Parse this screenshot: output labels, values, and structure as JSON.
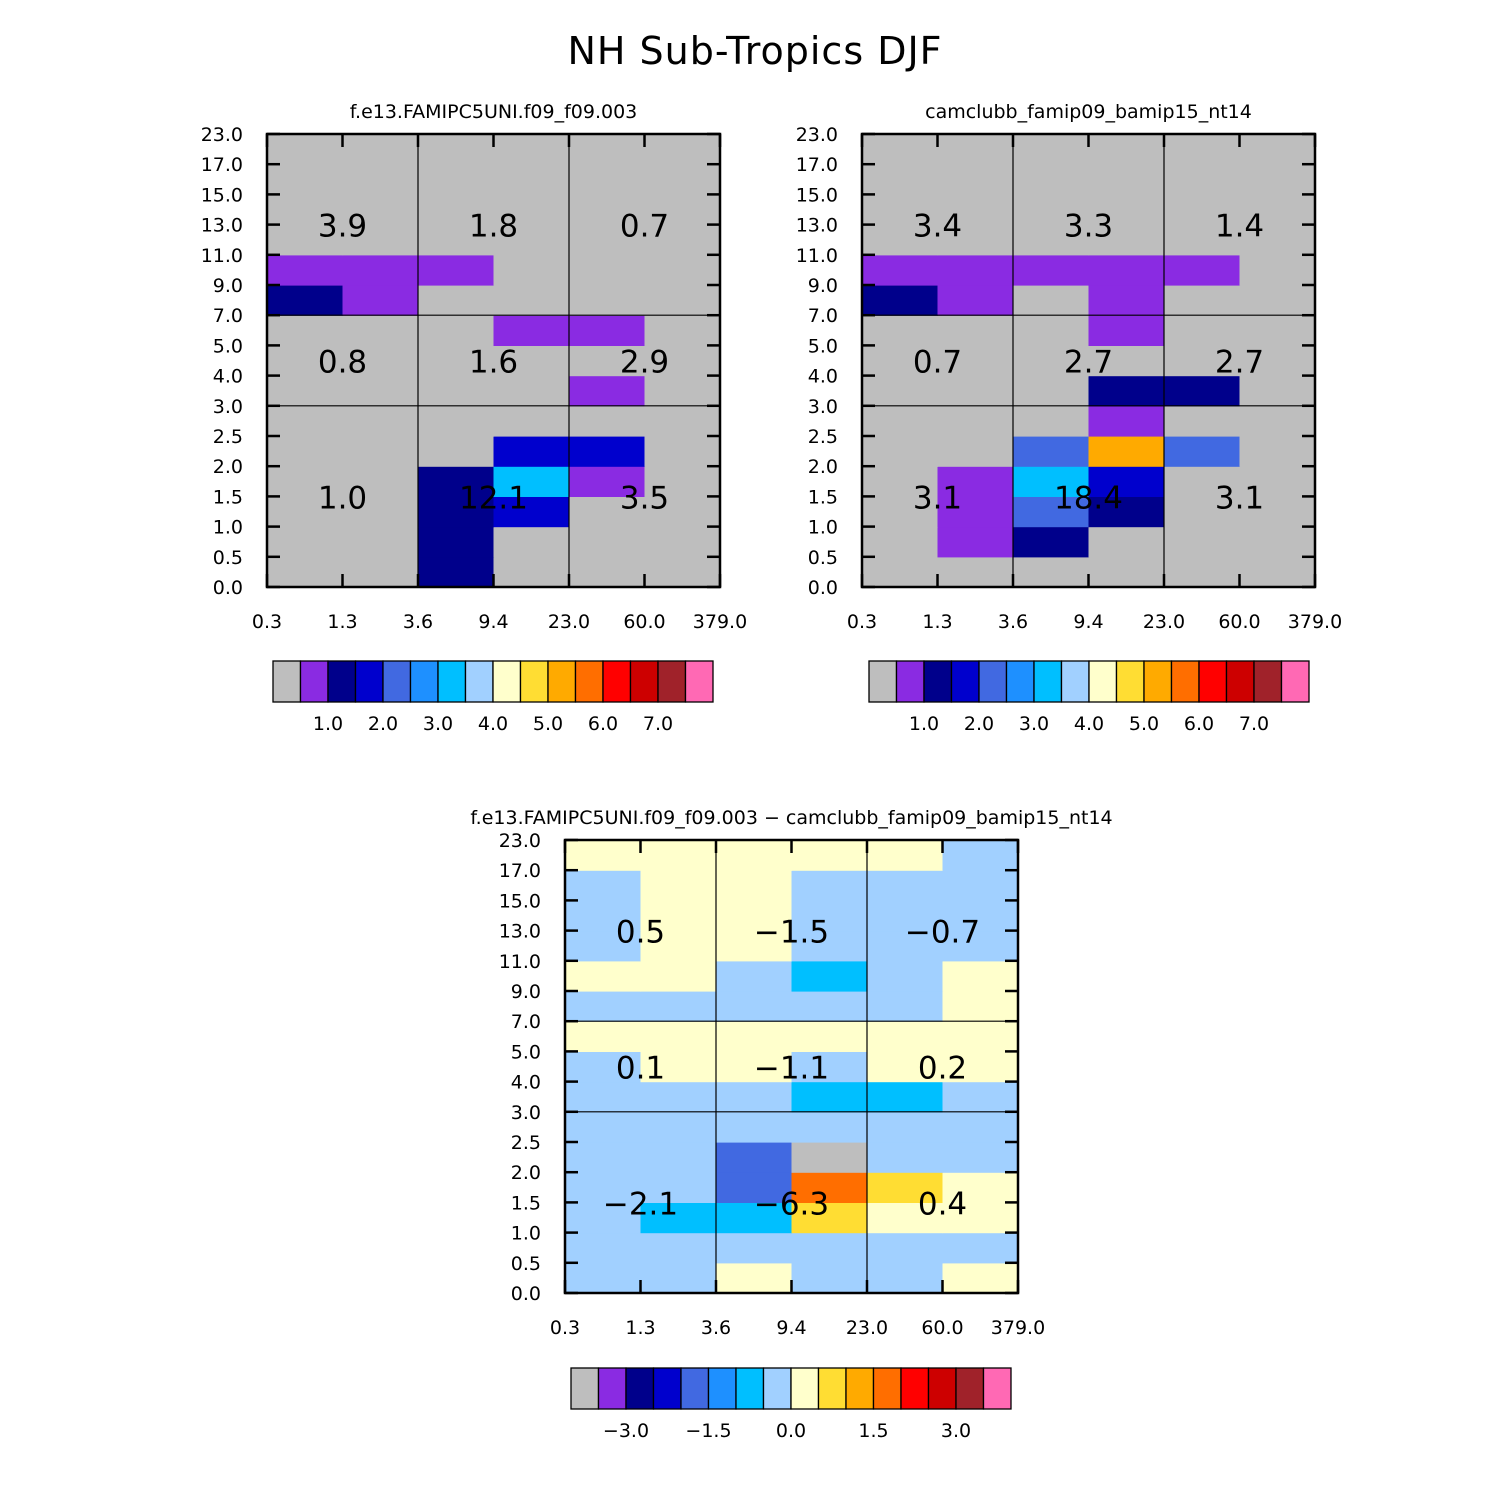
{
  "figure_title": "NH Sub-Tropics DJF",
  "chart_data": [
    {
      "type": "heatmap",
      "title": "f.e13.FAMIPC5UNI.f09_f09.003",
      "x_tick_labels": [
        "0.3",
        "1.3",
        "3.6",
        "9.4",
        "23.0",
        "60.0",
        "379.0"
      ],
      "y_tick_labels": [
        "0.0",
        "0.5",
        "1.0",
        "1.5",
        "2.0",
        "2.5",
        "3.0",
        "4.0",
        "5.0",
        "7.0",
        "9.0",
        "11.0",
        "13.0",
        "15.0",
        "17.0",
        "23.0"
      ],
      "grid_cells": [
        [
          "gray",
          "gray",
          "navy",
          "gray",
          "gray",
          "gray"
        ],
        [
          "gray",
          "gray",
          "navy",
          "gray",
          "gray",
          "gray"
        ],
        [
          "gray",
          "gray",
          "navy",
          "blue",
          "gray",
          "gray"
        ],
        [
          "gray",
          "gray",
          "navy",
          "deepskyblue",
          "violet",
          "gray"
        ],
        [
          "gray",
          "gray",
          "gray",
          "blue",
          "blue",
          "gray"
        ],
        [
          "gray",
          "gray",
          "gray",
          "gray",
          "gray",
          "gray"
        ],
        [
          "gray",
          "gray",
          "gray",
          "gray",
          "violet",
          "gray"
        ],
        [
          "gray",
          "gray",
          "gray",
          "gray",
          "gray",
          "gray"
        ],
        [
          "gray",
          "gray",
          "gray",
          "violet",
          "violet",
          "gray"
        ],
        [
          "navy",
          "violet",
          "gray",
          "gray",
          "gray",
          "gray"
        ],
        [
          "violet",
          "violet",
          "violet",
          "gray",
          "gray",
          "gray"
        ],
        [
          "gray",
          "gray",
          "gray",
          "gray",
          "gray",
          "gray"
        ],
        [
          "gray",
          "gray",
          "gray",
          "gray",
          "gray",
          "gray"
        ],
        [
          "gray",
          "gray",
          "gray",
          "gray",
          "gray",
          "gray"
        ],
        [
          "gray",
          "gray",
          "gray",
          "gray",
          "gray",
          "gray"
        ]
      ],
      "group_values": [
        [
          "1.0",
          "12.1",
          "3.5"
        ],
        [
          "0.8",
          "1.6",
          "2.9"
        ],
        [
          "3.9",
          "1.8",
          "0.7"
        ]
      ],
      "colorbar": {
        "colors": [
          "gray",
          "violet",
          "navy",
          "blue",
          "royalblue",
          "dodgerblue",
          "deepskyblue",
          "lightblue",
          "cream",
          "gold",
          "orange",
          "darkorange",
          "red",
          "crimson",
          "brown",
          "pink"
        ],
        "labels": [
          "1.0",
          "2.0",
          "3.0",
          "4.0",
          "5.0",
          "6.0",
          "7.0"
        ]
      }
    },
    {
      "type": "heatmap",
      "title": "camclubb_famip09_bamip15_nt14",
      "x_tick_labels": [
        "0.3",
        "1.3",
        "3.6",
        "9.4",
        "23.0",
        "60.0",
        "379.0"
      ],
      "y_tick_labels": [
        "0.0",
        "0.5",
        "1.0",
        "1.5",
        "2.0",
        "2.5",
        "3.0",
        "4.0",
        "5.0",
        "7.0",
        "9.0",
        "11.0",
        "13.0",
        "15.0",
        "17.0",
        "23.0"
      ],
      "grid_cells": [
        [
          "gray",
          "gray",
          "gray",
          "gray",
          "gray",
          "gray"
        ],
        [
          "gray",
          "violet",
          "navy",
          "gray",
          "gray",
          "gray"
        ],
        [
          "gray",
          "violet",
          "royalblue",
          "navy",
          "gray",
          "gray"
        ],
        [
          "gray",
          "violet",
          "deepskyblue",
          "blue",
          "gray",
          "gray"
        ],
        [
          "gray",
          "gray",
          "royalblue",
          "orange",
          "royalblue",
          "gray"
        ],
        [
          "gray",
          "gray",
          "gray",
          "violet",
          "gray",
          "gray"
        ],
        [
          "gray",
          "gray",
          "gray",
          "navy",
          "navy",
          "gray"
        ],
        [
          "gray",
          "gray",
          "gray",
          "gray",
          "gray",
          "gray"
        ],
        [
          "gray",
          "gray",
          "gray",
          "violet",
          "gray",
          "gray"
        ],
        [
          "navy",
          "violet",
          "gray",
          "violet",
          "gray",
          "gray"
        ],
        [
          "violet",
          "violet",
          "violet",
          "violet",
          "violet",
          "gray"
        ],
        [
          "gray",
          "gray",
          "gray",
          "gray",
          "gray",
          "gray"
        ],
        [
          "gray",
          "gray",
          "gray",
          "gray",
          "gray",
          "gray"
        ],
        [
          "gray",
          "gray",
          "gray",
          "gray",
          "gray",
          "gray"
        ],
        [
          "gray",
          "gray",
          "gray",
          "gray",
          "gray",
          "gray"
        ]
      ],
      "group_values": [
        [
          "3.1",
          "18.4",
          "3.1"
        ],
        [
          "0.7",
          "2.7",
          "2.7"
        ],
        [
          "3.4",
          "3.3",
          "1.4"
        ]
      ],
      "colorbar": {
        "colors": [
          "gray",
          "violet",
          "navy",
          "blue",
          "royalblue",
          "dodgerblue",
          "deepskyblue",
          "lightblue",
          "cream",
          "gold",
          "orange",
          "darkorange",
          "red",
          "crimson",
          "brown",
          "pink"
        ],
        "labels": [
          "1.0",
          "2.0",
          "3.0",
          "4.0",
          "5.0",
          "6.0",
          "7.0"
        ]
      }
    },
    {
      "type": "heatmap",
      "title": "f.e13.FAMIPC5UNI.f09_f09.003 − camclubb_famip09_bamip15_nt14",
      "x_tick_labels": [
        "0.3",
        "1.3",
        "3.6",
        "9.4",
        "23.0",
        "60.0",
        "379.0"
      ],
      "y_tick_labels": [
        "0.0",
        "0.5",
        "1.0",
        "1.5",
        "2.0",
        "2.5",
        "3.0",
        "4.0",
        "5.0",
        "7.0",
        "9.0",
        "11.0",
        "13.0",
        "15.0",
        "17.0",
        "23.0"
      ],
      "grid_cells": [
        [
          "lightblue",
          "lightblue",
          "cream",
          "lightblue",
          "lightblue",
          "cream"
        ],
        [
          "lightblue",
          "lightblue",
          "lightblue",
          "lightblue",
          "lightblue",
          "lightblue"
        ],
        [
          "lightblue",
          "deepskyblue",
          "deepskyblue",
          "gold",
          "cream",
          "cream"
        ],
        [
          "lightblue",
          "lightblue",
          "royalblue",
          "darkorange",
          "gold",
          "cream"
        ],
        [
          "lightblue",
          "lightblue",
          "royalblue",
          "gray",
          "lightblue",
          "lightblue"
        ],
        [
          "lightblue",
          "lightblue",
          "lightblue",
          "lightblue",
          "lightblue",
          "lightblue"
        ],
        [
          "lightblue",
          "lightblue",
          "lightblue",
          "deepskyblue",
          "deepskyblue",
          "lightblue"
        ],
        [
          "lightblue",
          "cream",
          "cream",
          "lightblue",
          "cream",
          "cream"
        ],
        [
          "cream",
          "cream",
          "cream",
          "cream",
          "cream",
          "cream"
        ],
        [
          "lightblue",
          "lightblue",
          "lightblue",
          "lightblue",
          "lightblue",
          "cream"
        ],
        [
          "cream",
          "cream",
          "lightblue",
          "deepskyblue",
          "lightblue",
          "cream"
        ],
        [
          "lightblue",
          "cream",
          "cream",
          "lightblue",
          "lightblue",
          "lightblue"
        ],
        [
          "lightblue",
          "cream",
          "cream",
          "lightblue",
          "lightblue",
          "lightblue"
        ],
        [
          "lightblue",
          "cream",
          "cream",
          "lightblue",
          "lightblue",
          "lightblue"
        ],
        [
          "cream",
          "cream",
          "cream",
          "cream",
          "cream",
          "lightblue"
        ]
      ],
      "group_values": [
        [
          "−2.1",
          "−6.3",
          "0.4"
        ],
        [
          "0.1",
          "−1.1",
          "0.2"
        ],
        [
          "0.5",
          "−1.5",
          "−0.7"
        ]
      ],
      "colorbar": {
        "colors": [
          "gray",
          "violet",
          "navy",
          "blue",
          "royalblue",
          "dodgerblue",
          "deepskyblue",
          "lightblue",
          "cream",
          "gold",
          "orange",
          "darkorange",
          "red",
          "crimson",
          "brown",
          "pink"
        ],
        "labels": [
          "−3.0",
          "−1.5",
          "0.0",
          "1.5",
          "3.0"
        ]
      }
    }
  ],
  "palette": {
    "gray": "#bebebe",
    "violet": "#8a2be2",
    "navy": "#00008b",
    "blue": "#0000cd",
    "royalblue": "#4169e1",
    "dodgerblue": "#1e90ff",
    "deepskyblue": "#00bfff",
    "lightblue": "#a1d0ff",
    "cream": "#ffffcc",
    "gold": "#ffdd33",
    "orange": "#ffaa00",
    "darkorange": "#ff6e00",
    "red": "#ff0000",
    "crimson": "#cd0000",
    "brown": "#a0222a",
    "pink": "#ff69b4"
  }
}
